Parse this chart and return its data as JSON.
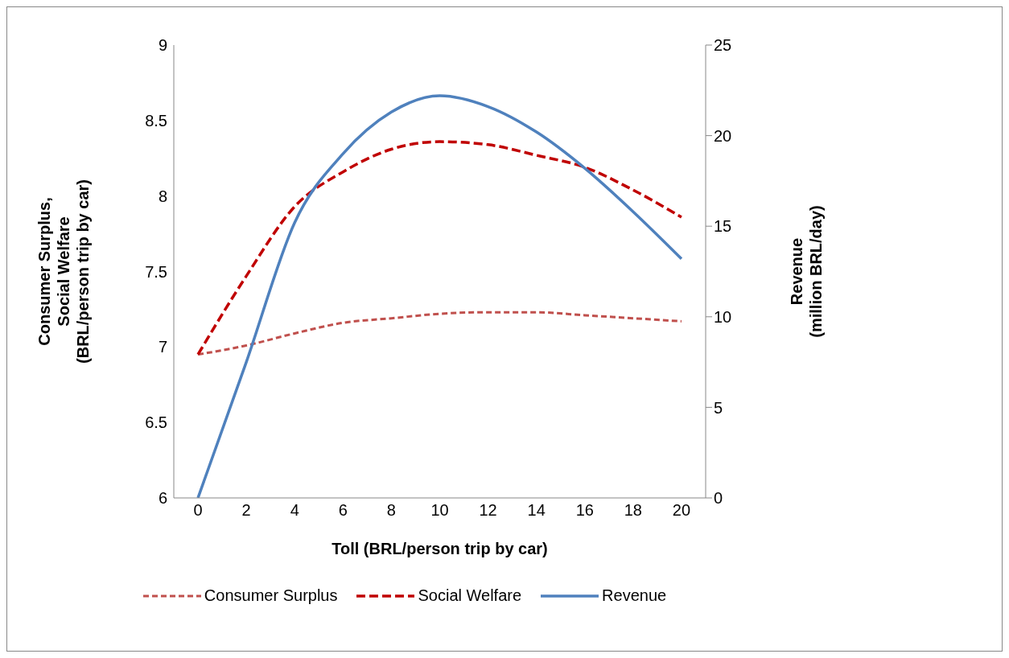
{
  "chart_data": {
    "type": "line",
    "xlabel": "Toll (BRL/person trip by car)",
    "ylabel": "Consumer Surplus,\nSocial Welfare\n(BRL/person trip by car)",
    "y2label": "Revenue\n(million BRL/day)",
    "x": [
      0,
      2,
      4,
      6,
      8,
      10,
      12,
      14,
      16,
      18,
      20
    ],
    "series": [
      {
        "name": "Consumer Surplus",
        "color": "#c0504d",
        "line_style": "dotted",
        "values": [
          6.95,
          7.01,
          7.09,
          7.16,
          7.19,
          7.22,
          7.23,
          7.23,
          7.21,
          7.19,
          7.17
        ]
      },
      {
        "name": "Social Welfare",
        "color": "#c00000",
        "line_style": "dashed",
        "values": [
          6.95,
          7.47,
          7.93,
          8.16,
          8.31,
          8.36,
          8.34,
          8.27,
          8.19,
          8.04,
          7.86
        ]
      },
      {
        "name": "Revenue",
        "color": "#4f81bd",
        "line_style": "solid",
        "axis": "y2",
        "values": [
          0,
          7.5,
          15.2,
          19.0,
          21.3,
          22.2,
          21.6,
          20.2,
          18.2,
          15.8,
          13.2
        ]
      }
    ],
    "xlim": [
      -1,
      21
    ],
    "xticks": [
      0,
      2,
      4,
      6,
      8,
      10,
      12,
      14,
      16,
      18,
      20
    ],
    "ylim": [
      6,
      9
    ],
    "yticks": [
      6,
      6.5,
      7,
      7.5,
      8,
      8.5,
      9
    ],
    "y2lim": [
      0,
      25
    ],
    "y2ticks": [
      0,
      5,
      10,
      15,
      20,
      25
    ],
    "grid": false,
    "legend": "bottom",
    "marker": "none"
  }
}
